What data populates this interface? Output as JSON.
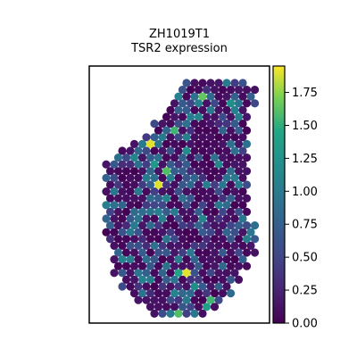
{
  "chart_data": {
    "type": "scatter",
    "title_lines": [
      "ZH1019T1",
      "TSR2 expression"
    ],
    "xlabel": "",
    "ylabel": "",
    "grid": false,
    "colormap": "viridis",
    "colorbar": {
      "min": 0,
      "max": 1.95,
      "ticks": [
        0.0,
        0.25,
        0.5,
        0.75,
        1.0,
        1.25,
        1.5,
        1.75
      ],
      "tick_labels": [
        "0.00",
        "0.25",
        "0.50",
        "0.75",
        "1.00",
        "1.25",
        "1.50",
        "1.75"
      ]
    },
    "spot_grid": {
      "rows": [
        {
          "r": 0,
          "c0": 11,
          "c1": 18
        },
        {
          "r": 1,
          "c0": 10,
          "c1": 19
        },
        {
          "r": 2,
          "c0": 10,
          "c1": 19
        },
        {
          "r": 3,
          "c0": 9,
          "c1": 19
        },
        {
          "r": 4,
          "c0": 9,
          "c1": 18
        },
        {
          "r": 5,
          "c0": 8,
          "c1": 18
        },
        {
          "r": 6,
          "c0": 7,
          "c1": 18
        },
        {
          "r": 7,
          "c0": 7,
          "c1": 18
        },
        {
          "r": 8,
          "c0": 6,
          "c1": 18
        },
        {
          "r": 9,
          "c0": 4,
          "c1": 18
        },
        {
          "r": 10,
          "c0": 3,
          "c1": 18
        },
        {
          "r": 11,
          "c0": 2,
          "c1": 18
        },
        {
          "r": 12,
          "c0": 1,
          "c1": 18
        },
        {
          "r": 13,
          "c0": 1,
          "c1": 18
        },
        {
          "r": 14,
          "c0": 1,
          "c1": 18
        },
        {
          "r": 15,
          "c0": 1,
          "c1": 18
        },
        {
          "r": 16,
          "c0": 1,
          "c1": 18
        },
        {
          "r": 17,
          "c0": 1,
          "c1": 18
        },
        {
          "r": 18,
          "c0": 1,
          "c1": 18
        },
        {
          "r": 19,
          "c0": 1,
          "c1": 18
        },
        {
          "r": 20,
          "c0": 1,
          "c1": 18
        },
        {
          "r": 21,
          "c0": 1,
          "c1": 19
        },
        {
          "r": 22,
          "c0": 1,
          "c1": 19
        },
        {
          "r": 23,
          "c0": 1,
          "c1": 19
        },
        {
          "r": 24,
          "c0": 2,
          "c1": 19
        },
        {
          "r": 25,
          "c0": 2,
          "c1": 19
        },
        {
          "r": 26,
          "c0": 2,
          "c1": 18
        },
        {
          "r": 27,
          "c0": 2,
          "c1": 18
        },
        {
          "r": 28,
          "c0": 2,
          "c1": 17
        },
        {
          "r": 29,
          "c0": 3,
          "c1": 17
        },
        {
          "r": 30,
          "c0": 3,
          "c1": 16
        },
        {
          "r": 31,
          "c0": 4,
          "c1": 16
        },
        {
          "r": 32,
          "c0": 5,
          "c1": 15
        },
        {
          "r": 33,
          "c0": 6,
          "c1": 14
        },
        {
          "r": 34,
          "c0": 7,
          "c1": 13
        }
      ],
      "background_value": 0.15
    },
    "points": [
      {
        "r": 2,
        "c": 13,
        "v": 1.65
      },
      {
        "r": 2,
        "c": 12,
        "v": 0.9
      },
      {
        "r": 3,
        "c": 16,
        "v": 1.2
      },
      {
        "r": 4,
        "c": 10,
        "v": 0.75
      },
      {
        "r": 4,
        "c": 14,
        "v": 1.0
      },
      {
        "r": 5,
        "c": 12,
        "v": 1.1
      },
      {
        "r": 6,
        "c": 11,
        "v": 0.9
      },
      {
        "r": 7,
        "c": 9,
        "v": 1.55
      },
      {
        "r": 7,
        "c": 15,
        "v": 0.8
      },
      {
        "r": 8,
        "c": 8,
        "v": 1.0
      },
      {
        "r": 9,
        "c": 6,
        "v": 1.9
      },
      {
        "r": 9,
        "c": 5,
        "v": 1.0
      },
      {
        "r": 10,
        "c": 11,
        "v": 1.2
      },
      {
        "r": 11,
        "c": 4,
        "v": 1.1
      },
      {
        "r": 11,
        "c": 14,
        "v": 0.9
      },
      {
        "r": 12,
        "c": 7,
        "v": 1.3
      },
      {
        "r": 12,
        "c": 15,
        "v": 1.1
      },
      {
        "r": 13,
        "c": 8,
        "v": 1.6
      },
      {
        "r": 14,
        "c": 6,
        "v": 1.0
      },
      {
        "r": 14,
        "c": 12,
        "v": 0.8
      },
      {
        "r": 15,
        "c": 7,
        "v": 1.9
      },
      {
        "r": 16,
        "c": 5,
        "v": 1.0
      },
      {
        "r": 17,
        "c": 10,
        "v": 0.9
      },
      {
        "r": 18,
        "c": 3,
        "v": 0.8
      },
      {
        "r": 19,
        "c": 9,
        "v": 1.0
      },
      {
        "r": 20,
        "c": 13,
        "v": 1.1
      },
      {
        "r": 21,
        "c": 4,
        "v": 1.0
      },
      {
        "r": 22,
        "c": 16,
        "v": 0.8
      },
      {
        "r": 24,
        "c": 7,
        "v": 0.9
      },
      {
        "r": 26,
        "c": 12,
        "v": 0.8
      },
      {
        "r": 28,
        "c": 11,
        "v": 1.9
      },
      {
        "r": 28,
        "c": 10,
        "v": 1.4
      },
      {
        "r": 29,
        "c": 6,
        "v": 1.0
      },
      {
        "r": 30,
        "c": 12,
        "v": 1.2
      },
      {
        "r": 31,
        "c": 9,
        "v": 1.1
      },
      {
        "r": 32,
        "c": 14,
        "v": 1.55
      },
      {
        "r": 33,
        "c": 13,
        "v": 1.35
      },
      {
        "r": 34,
        "c": 10,
        "v": 1.6
      }
    ]
  }
}
